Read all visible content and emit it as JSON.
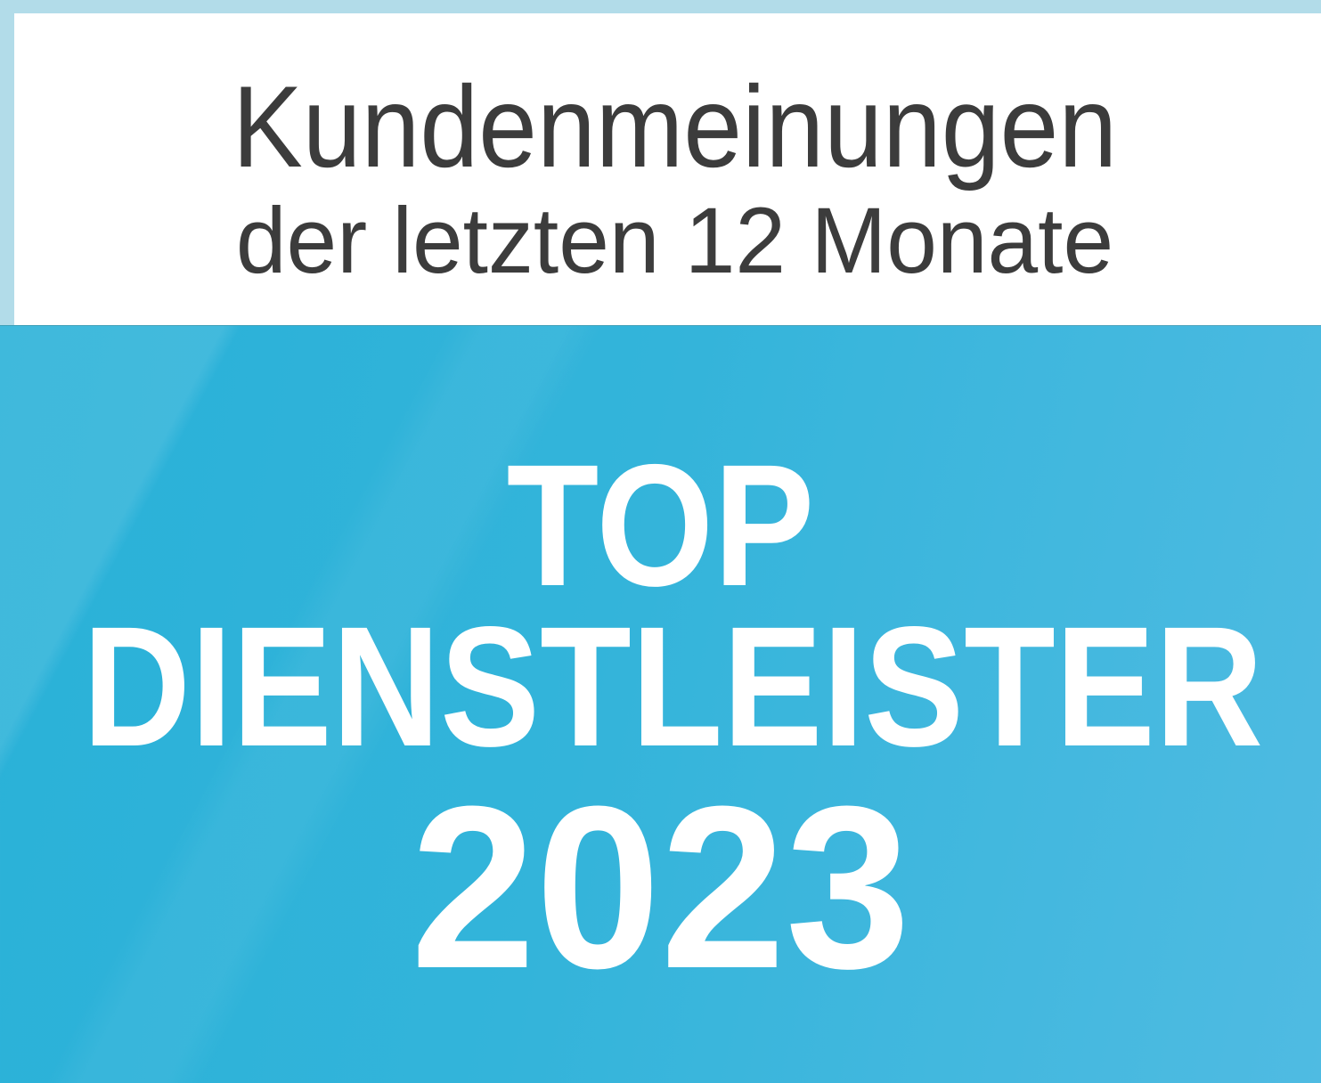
{
  "header": {
    "line1": "Kundenmeinungen",
    "line2": "der letzten 12 Monate"
  },
  "award": {
    "line1": "TOP",
    "line2": "DIENSTLEISTER",
    "year": "2023"
  },
  "colors": {
    "frame": "#b2dce9",
    "header_bg": "#ffffff",
    "header_text": "#3c3c3c",
    "award_bg_start": "#29b1d8",
    "award_bg_mid": "#33b4da",
    "award_bg_end": "#4fbbe2",
    "award_text": "#ffffff"
  }
}
